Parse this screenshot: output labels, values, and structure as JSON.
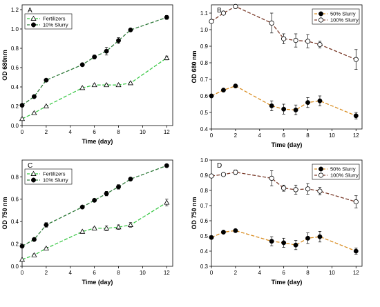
{
  "chart_data": [
    {
      "type": "line",
      "panel": "A",
      "xlabel": "Time (day)",
      "ylabel": "OD 680nm",
      "xlim": [
        0,
        12.5
      ],
      "ylim": [
        0,
        1.25
      ],
      "xticks": [
        0,
        2,
        4,
        6,
        8,
        10,
        12
      ],
      "xtick_labels": [
        "0",
        "2",
        "4",
        "6",
        "8",
        "10",
        "12"
      ],
      "yticks": [
        0,
        0.2,
        0.4,
        0.6,
        0.8,
        1.0,
        1.2
      ],
      "ytick_labels": [
        "0.0",
        "0.2",
        "0.4",
        "0.6",
        "0.8",
        "1.0",
        "1.2"
      ],
      "legend_position": "top-left",
      "series": [
        {
          "name": "Fertilizers",
          "color": "#39c845",
          "dash": "dashed",
          "marker": "triangle-open",
          "x": [
            0,
            1,
            2,
            5,
            6,
            7,
            8,
            9,
            12
          ],
          "y": [
            0.07,
            0.13,
            0.2,
            0.39,
            0.42,
            0.42,
            0.42,
            0.44,
            0.7
          ],
          "err": [
            0.01,
            0.01,
            0.01,
            0.01,
            0.01,
            0.01,
            0.01,
            0.01,
            0.02
          ]
        },
        {
          "name": "10% Slurry",
          "color": "#2f7a3a",
          "dash": "dashed",
          "marker": "circle-filled",
          "x": [
            0,
            1,
            2,
            5,
            6,
            7,
            8,
            9,
            12
          ],
          "y": [
            0.21,
            0.3,
            0.47,
            0.63,
            0.71,
            0.77,
            0.88,
            0.99,
            1.12
          ],
          "err": [
            0.01,
            0.01,
            0.01,
            0.01,
            0.02,
            0.04,
            0.03,
            0.01,
            0.02
          ]
        }
      ]
    },
    {
      "type": "line",
      "panel": "B",
      "xlabel": "Time (day)",
      "ylabel": "OD 680 nm",
      "xlim": [
        0,
        12.5
      ],
      "ylim": [
        0.4,
        1.15
      ],
      "xticks": [
        0,
        2,
        4,
        6,
        8,
        10,
        12
      ],
      "xtick_labels": [
        "0",
        "2",
        "4",
        "6",
        "8",
        "10",
        "12"
      ],
      "yticks": [
        0.4,
        0.5,
        0.6,
        0.7,
        0.8,
        0.9,
        1.0,
        1.1
      ],
      "ytick_labels": [
        "0.4",
        "0.5",
        "0.6",
        "0.7",
        "0.8",
        "0.9",
        "1.0",
        "1.1"
      ],
      "legend_position": "top-right",
      "series": [
        {
          "name": "50% Slurry",
          "color": "#d98c1f",
          "dash": "dashed",
          "marker": "circle-filled",
          "x": [
            0,
            1,
            2,
            5,
            6,
            7,
            8,
            9,
            12
          ],
          "y": [
            0.6,
            0.635,
            0.66,
            0.54,
            0.52,
            0.515,
            0.56,
            0.57,
            0.48
          ],
          "err": [
            0.005,
            0.01,
            0.005,
            0.03,
            0.03,
            0.03,
            0.03,
            0.03,
            0.02
          ]
        },
        {
          "name": "100% Slurry",
          "color": "#7a3b2a",
          "dash": "dashed",
          "marker": "circle-open",
          "x": [
            0,
            1,
            2,
            5,
            6,
            7,
            8,
            9,
            12
          ],
          "y": [
            1.05,
            1.1,
            1.14,
            1.04,
            0.945,
            0.935,
            0.93,
            0.91,
            0.82
          ],
          "err": [
            0.01,
            0.01,
            0.005,
            0.06,
            0.03,
            0.04,
            0.04,
            0.02,
            0.06
          ]
        }
      ]
    },
    {
      "type": "line",
      "panel": "C",
      "xlabel": "Time (day)",
      "ylabel": "OD 750 nm",
      "xlim": [
        0,
        12.5
      ],
      "ylim": [
        0,
        0.95
      ],
      "xticks": [
        0,
        2,
        4,
        6,
        8,
        10,
        12
      ],
      "xtick_labels": [
        "0",
        "2",
        "4",
        "6",
        "8",
        "10",
        "12"
      ],
      "yticks": [
        0,
        0.2,
        0.4,
        0.6,
        0.8
      ],
      "ytick_labels": [
        "0.0",
        "0.2",
        "0.4",
        "0.6",
        "0.8"
      ],
      "legend_position": "top-left",
      "series": [
        {
          "name": "Fertilizers",
          "color": "#39c845",
          "dash": "dashed",
          "marker": "triangle-open",
          "x": [
            0,
            1,
            2,
            5,
            6,
            7,
            8,
            9,
            12
          ],
          "y": [
            0.06,
            0.1,
            0.16,
            0.31,
            0.34,
            0.34,
            0.35,
            0.37,
            0.57
          ],
          "err": [
            0.005,
            0.01,
            0.01,
            0.01,
            0.01,
            0.02,
            0.02,
            0.02,
            0.03
          ]
        },
        {
          "name": "10% Slurry",
          "color": "#2f7a3a",
          "dash": "dashed",
          "marker": "circle-filled",
          "x": [
            0,
            1,
            2,
            5,
            6,
            7,
            8,
            9,
            12
          ],
          "y": [
            0.18,
            0.24,
            0.37,
            0.53,
            0.59,
            0.65,
            0.71,
            0.78,
            0.9
          ],
          "err": [
            0.005,
            0.01,
            0.02,
            0.01,
            0.01,
            0.02,
            0.02,
            0.01,
            0.005
          ]
        }
      ]
    },
    {
      "type": "line",
      "panel": "D",
      "xlabel": "Time (day)",
      "ylabel": "OD 750 nm",
      "xlim": [
        0,
        12.5
      ],
      "ylim": [
        0.3,
        1.0
      ],
      "xticks": [
        0,
        2,
        4,
        6,
        8,
        10,
        12
      ],
      "xtick_labels": [
        "0",
        "2",
        "4",
        "6",
        "8",
        "10",
        "12"
      ],
      "yticks": [
        0.3,
        0.4,
        0.5,
        0.6,
        0.7,
        0.8,
        0.9,
        1.0
      ],
      "ytick_labels": [
        "0.3",
        "0.4",
        "0.5",
        "0.6",
        "0.7",
        "0.8",
        "0.9",
        "1.0"
      ],
      "legend_position": "top-right",
      "series": [
        {
          "name": "50% Slurry",
          "color": "#d98c1f",
          "dash": "dashed",
          "marker": "circle-filled",
          "x": [
            0,
            1,
            2,
            5,
            6,
            7,
            8,
            9,
            12
          ],
          "y": [
            0.49,
            0.525,
            0.535,
            0.465,
            0.455,
            0.44,
            0.485,
            0.495,
            0.4
          ],
          "err": [
            0.005,
            0.01,
            0.005,
            0.03,
            0.03,
            0.03,
            0.035,
            0.035,
            0.02
          ]
        },
        {
          "name": "100% Slurry",
          "color": "#7a3b2a",
          "dash": "dashed",
          "marker": "circle-open",
          "x": [
            0,
            1,
            2,
            5,
            6,
            7,
            8,
            9,
            12
          ],
          "y": [
            0.895,
            0.905,
            0.92,
            0.88,
            0.815,
            0.805,
            0.81,
            0.795,
            0.725
          ],
          "err": [
            0.01,
            0.01,
            0.015,
            0.05,
            0.02,
            0.03,
            0.035,
            0.025,
            0.04
          ]
        }
      ]
    }
  ]
}
